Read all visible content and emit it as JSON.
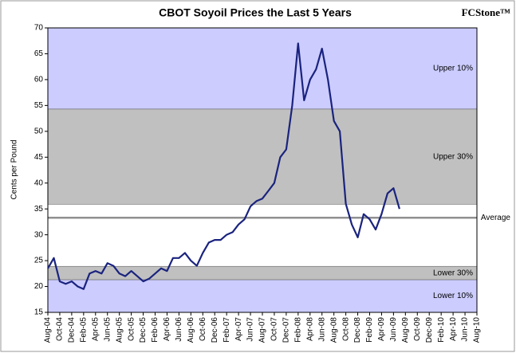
{
  "chart_data": {
    "type": "line",
    "title": "CBOT Soyoil Prices the Last 5 Years",
    "logo": "FCStone™",
    "ylabel": "Cents per Pound",
    "ylim": [
      15,
      70
    ],
    "yticks": [
      15,
      20,
      25,
      30,
      35,
      40,
      45,
      50,
      55,
      60,
      65,
      70
    ],
    "categories": [
      "Aug-04",
      "Oct-04",
      "Dec-04",
      "Feb-05",
      "Apr-05",
      "Jun-05",
      "Aug-05",
      "Oct-05",
      "Dec-05",
      "Feb-06",
      "Apr-06",
      "Jun-06",
      "Aug-06",
      "Oct-06",
      "Dec-06",
      "Feb-07",
      "Apr-07",
      "Jun-07",
      "Aug-07",
      "Oct-07",
      "Dec-07",
      "Feb-08",
      "Apr-08",
      "Jun-08",
      "Aug-08",
      "Oct-08",
      "Dec-08",
      "Feb-09",
      "Apr-09",
      "Jun-09",
      "Aug-09",
      "Oct-09",
      "Dec-09",
      "Feb-10",
      "Apr-10",
      "Jun-10",
      "Aug-10"
    ],
    "bands": [
      {
        "name": "Upper 10%",
        "from": 54.3,
        "to": 70,
        "color": "#ccccff"
      },
      {
        "name": "Upper 30%",
        "from": 35.9,
        "to": 54.3,
        "color": "#c0c0c0"
      },
      {
        "name": "Lower 30%",
        "from": 21.3,
        "to": 23.9,
        "color": "#c0c0c0"
      },
      {
        "name": "Lower 10%",
        "from": 15,
        "to": 21.3,
        "color": "#ccccff"
      }
    ],
    "average": {
      "name": "Average",
      "value": 33.3,
      "color": "#909090"
    },
    "series": [
      {
        "name": "Soyoil",
        "color": "#1a237e",
        "x": [
          "Aug-04",
          "Sep-04",
          "Oct-04",
          "Nov-04",
          "Dec-04",
          "Jan-05",
          "Feb-05",
          "Mar-05",
          "Apr-05",
          "May-05",
          "Jun-05",
          "Jul-05",
          "Aug-05",
          "Sep-05",
          "Oct-05",
          "Nov-05",
          "Dec-05",
          "Jan-06",
          "Feb-06",
          "Mar-06",
          "Apr-06",
          "May-06",
          "Jun-06",
          "Jul-06",
          "Aug-06",
          "Sep-06",
          "Oct-06",
          "Nov-06",
          "Dec-06",
          "Jan-07",
          "Feb-07",
          "Mar-07",
          "Apr-07",
          "May-07",
          "Jun-07",
          "Jul-07",
          "Aug-07",
          "Sep-07",
          "Oct-07",
          "Nov-07",
          "Dec-07",
          "Jan-08",
          "Feb-08",
          "Mar-08",
          "Apr-08",
          "May-08",
          "Jun-08",
          "Jul-08",
          "Aug-08",
          "Sep-08",
          "Oct-08",
          "Nov-08",
          "Dec-08",
          "Jan-09",
          "Feb-09",
          "Mar-09",
          "Apr-09",
          "May-09",
          "Jun-09",
          "Jul-09"
        ],
        "values": [
          23.5,
          25.5,
          21,
          20.5,
          21,
          20,
          19.5,
          22.5,
          23,
          22.5,
          24.5,
          24,
          22.5,
          22,
          23,
          22,
          21,
          21.5,
          22.5,
          23.5,
          23,
          25.5,
          25.5,
          26.5,
          25,
          24,
          26.5,
          28.5,
          29,
          29,
          30,
          30.5,
          32,
          33,
          35.5,
          36.5,
          37,
          38.5,
          40,
          45,
          46.5,
          55,
          67,
          56,
          60,
          62,
          66,
          60,
          52,
          50,
          36,
          32,
          29.5,
          34,
          33,
          31,
          34,
          38,
          39,
          35
        ]
      }
    ]
  }
}
